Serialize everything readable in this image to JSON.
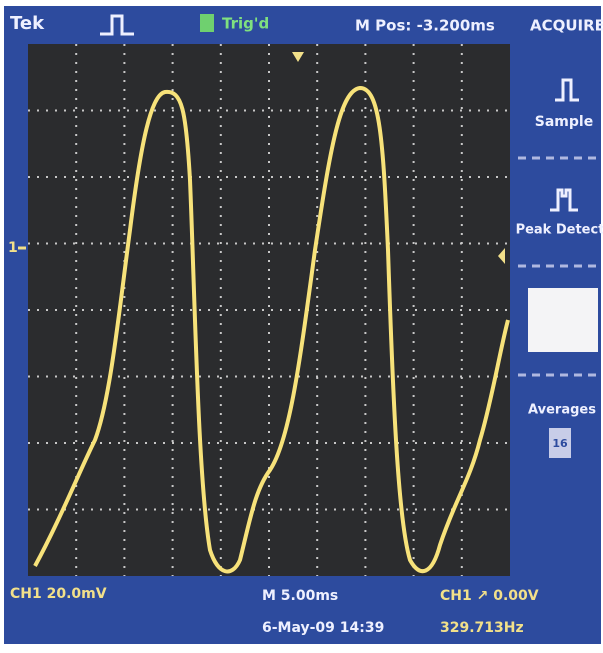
{
  "header": {
    "brand": "Tek",
    "trigger_status": "Trig'd",
    "position": "M Pos: -3.200ms",
    "menu_title": "ACQUIRE"
  },
  "menu": {
    "items": [
      "Sample",
      "Peak Detect",
      "Averages"
    ],
    "averages_value": "16"
  },
  "screen": {
    "channel_marker": "1"
  },
  "footer": {
    "channel_scale": "CH1 20.0mV",
    "time_scale": "M 5.00ms",
    "trigger": "CH1 ↗ 0.00V",
    "date_time": "6-May-09 14:39",
    "frequency": "329.713Hz"
  }
}
